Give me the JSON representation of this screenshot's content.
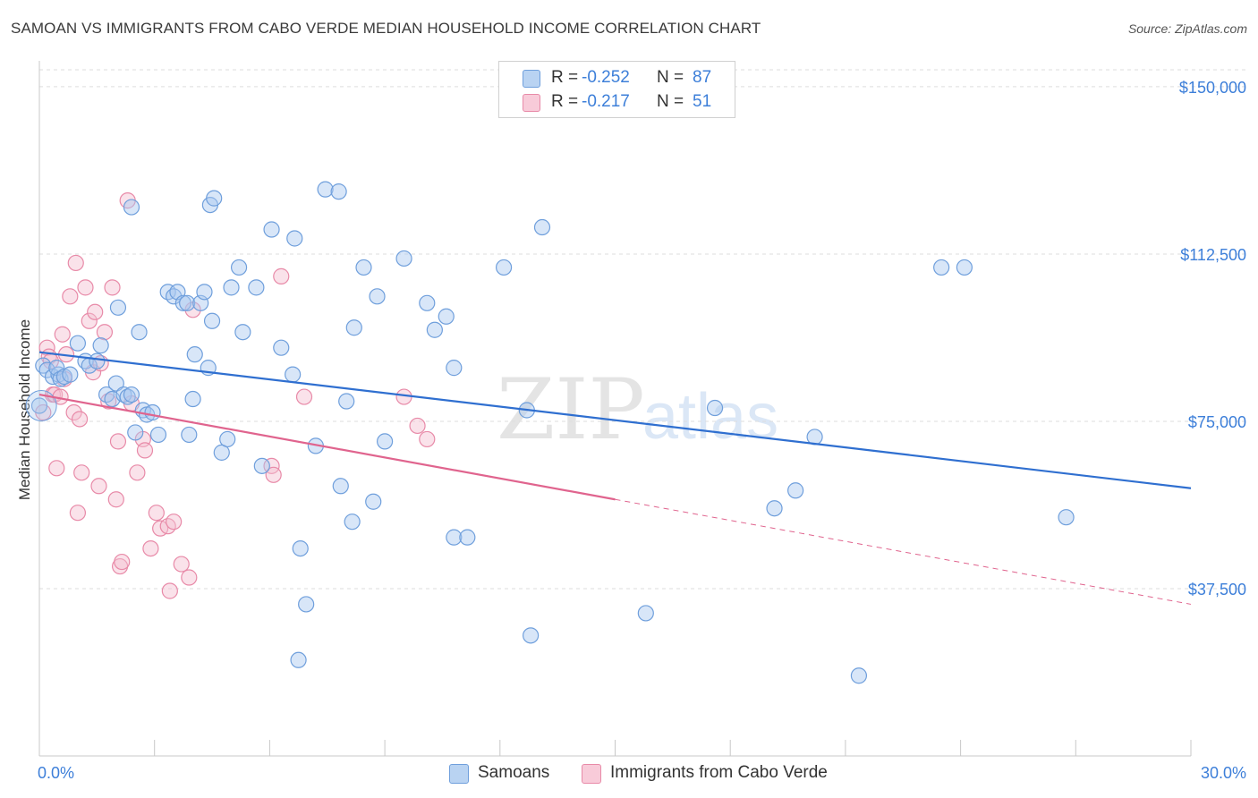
{
  "header": {
    "title": "SAMOAN VS IMMIGRANTS FROM CABO VERDE MEDIAN HOUSEHOLD INCOME CORRELATION CHART",
    "source": "Source: ZipAtlas.com"
  },
  "watermark": {
    "zip": "ZIP",
    "atlas": "atlas"
  },
  "legend": {
    "rows": [
      {
        "r_label": "R =",
        "r_value": "-0.252",
        "n_label": "N =",
        "n_value": "87"
      },
      {
        "r_label": "R =",
        "r_value": "-0.217",
        "n_label": "N =",
        "n_value": "51"
      }
    ]
  },
  "bottom_legend": {
    "samoans": "Samoans",
    "cabo_verde": "Immigrants from Cabo Verde"
  },
  "colors": {
    "blue_fill": "#a9c8ef",
    "blue_stroke": "#6f9fdc",
    "blue_line": "#2f6fd0",
    "pink_fill": "#f5bfd0",
    "pink_stroke": "#e88aa8",
    "pink_line": "#e0648e",
    "tick_label": "#3d7fd9",
    "grid": "#dedede"
  },
  "chart_data": {
    "type": "scatter",
    "title": "SAMOAN VS IMMIGRANTS FROM CABO VERDE MEDIAN HOUSEHOLD INCOME CORRELATION CHART",
    "xlabel": "",
    "ylabel": "Median Household Income",
    "xlim": [
      0,
      30
    ],
    "ylim": [
      0,
      155000
    ],
    "x_tick_labels": [
      {
        "value": 0,
        "label": "0.0%"
      },
      {
        "value": 30,
        "label": "30.0%"
      }
    ],
    "y_ticks": [
      {
        "value": 37500,
        "label": "$37,500"
      },
      {
        "value": 75000,
        "label": "$75,000"
      },
      {
        "value": 112500,
        "label": "$112,500"
      },
      {
        "value": 150000,
        "label": "$150,000"
      }
    ],
    "grid": "horizontal dashed",
    "series": [
      {
        "name": "Samoans",
        "r": -0.252,
        "n": 87,
        "trend": {
          "x": [
            0,
            30
          ],
          "y": [
            90500,
            60000
          ]
        },
        "points": [
          [
            0.0,
            78500
          ],
          [
            0.1,
            87500
          ],
          [
            0.2,
            86500
          ],
          [
            0.35,
            85000
          ],
          [
            0.5,
            85500
          ],
          [
            0.45,
            87000
          ],
          [
            0.55,
            84500
          ],
          [
            0.65,
            85000
          ],
          [
            0.8,
            85500
          ],
          [
            1.0,
            92500
          ],
          [
            1.2,
            88500
          ],
          [
            1.3,
            87500
          ],
          [
            1.5,
            88500
          ],
          [
            1.6,
            92000
          ],
          [
            1.75,
            81000
          ],
          [
            1.9,
            80000
          ],
          [
            2.0,
            83500
          ],
          [
            2.05,
            100500
          ],
          [
            2.2,
            81000
          ],
          [
            2.3,
            80500
          ],
          [
            2.4,
            81000
          ],
          [
            2.5,
            72500
          ],
          [
            2.6,
            95000
          ],
          [
            2.7,
            77500
          ],
          [
            2.8,
            76500
          ],
          [
            2.95,
            77000
          ],
          [
            3.1,
            72000
          ],
          [
            3.35,
            104000
          ],
          [
            3.5,
            103000
          ],
          [
            3.6,
            104000
          ],
          [
            3.75,
            101500
          ],
          [
            3.85,
            101500
          ],
          [
            3.9,
            72000
          ],
          [
            4.0,
            80000
          ],
          [
            4.05,
            90000
          ],
          [
            4.2,
            101500
          ],
          [
            4.3,
            104000
          ],
          [
            4.4,
            87000
          ],
          [
            4.5,
            97500
          ],
          [
            2.4,
            123000
          ],
          [
            4.45,
            123500
          ],
          [
            4.55,
            125000
          ],
          [
            4.75,
            68000
          ],
          [
            4.9,
            71000
          ],
          [
            5.0,
            105000
          ],
          [
            5.2,
            109500
          ],
          [
            5.3,
            95000
          ],
          [
            5.65,
            105000
          ],
          [
            5.8,
            65000
          ],
          [
            6.05,
            118000
          ],
          [
            6.3,
            91500
          ],
          [
            6.6,
            85500
          ],
          [
            6.65,
            116000
          ],
          [
            7.2,
            69500
          ],
          [
            7.45,
            127000
          ],
          [
            7.85,
            60500
          ],
          [
            8.0,
            79500
          ],
          [
            8.2,
            96000
          ],
          [
            8.45,
            109500
          ],
          [
            8.8,
            103000
          ],
          [
            9.0,
            70500
          ],
          [
            9.5,
            111500
          ],
          [
            10.1,
            101500
          ],
          [
            10.3,
            95500
          ],
          [
            10.6,
            98500
          ],
          [
            10.8,
            87000
          ],
          [
            12.1,
            109500
          ],
          [
            13.1,
            118500
          ],
          [
            6.8,
            46500
          ],
          [
            6.95,
            34000
          ],
          [
            6.75,
            21500
          ],
          [
            8.15,
            52500
          ],
          [
            8.7,
            57000
          ],
          [
            10.8,
            49000
          ],
          [
            11.15,
            49000
          ],
          [
            12.8,
            27000
          ],
          [
            15.8,
            32000
          ],
          [
            17.6,
            78000
          ],
          [
            19.15,
            55500
          ],
          [
            19.7,
            59500
          ],
          [
            20.2,
            71500
          ],
          [
            21.35,
            18000
          ],
          [
            23.5,
            109500
          ],
          [
            24.1,
            109500
          ],
          [
            26.75,
            53500
          ],
          [
            7.8,
            126500
          ],
          [
            12.7,
            77500
          ]
        ]
      },
      {
        "name": "Immigrants from Cabo Verde",
        "r": -0.217,
        "n": 51,
        "trend": {
          "x": [
            0,
            15
          ],
          "y": [
            81000,
            57500
          ]
        },
        "trend_dashed": {
          "x": [
            15,
            30
          ],
          "y": [
            57500,
            34000
          ]
        },
        "points": [
          [
            0.1,
            77000
          ],
          [
            0.2,
            91500
          ],
          [
            0.25,
            89500
          ],
          [
            0.3,
            88500
          ],
          [
            0.35,
            81000
          ],
          [
            0.4,
            81000
          ],
          [
            0.45,
            64500
          ],
          [
            0.55,
            80500
          ],
          [
            0.6,
            94500
          ],
          [
            0.65,
            84500
          ],
          [
            0.7,
            90000
          ],
          [
            0.8,
            103000
          ],
          [
            0.9,
            77000
          ],
          [
            0.95,
            110500
          ],
          [
            1.0,
            54500
          ],
          [
            1.05,
            75500
          ],
          [
            1.1,
            63500
          ],
          [
            1.2,
            105000
          ],
          [
            1.3,
            97500
          ],
          [
            1.4,
            86000
          ],
          [
            1.45,
            99500
          ],
          [
            1.55,
            60500
          ],
          [
            1.6,
            88000
          ],
          [
            1.7,
            95000
          ],
          [
            1.8,
            79500
          ],
          [
            1.9,
            105000
          ],
          [
            2.0,
            57500
          ],
          [
            2.05,
            70500
          ],
          [
            2.1,
            42500
          ],
          [
            2.15,
            43500
          ],
          [
            2.3,
            124500
          ],
          [
            2.4,
            79000
          ],
          [
            2.55,
            63500
          ],
          [
            2.7,
            71000
          ],
          [
            2.75,
            68500
          ],
          [
            2.9,
            46500
          ],
          [
            3.05,
            54500
          ],
          [
            3.15,
            51000
          ],
          [
            3.35,
            51500
          ],
          [
            3.4,
            37000
          ],
          [
            3.5,
            52500
          ],
          [
            3.7,
            43000
          ],
          [
            3.9,
            40000
          ],
          [
            4.0,
            100000
          ],
          [
            6.05,
            65000
          ],
          [
            6.1,
            63000
          ],
          [
            6.3,
            107500
          ],
          [
            6.9,
            80500
          ],
          [
            9.5,
            80500
          ],
          [
            9.85,
            74000
          ],
          [
            10.1,
            71000
          ]
        ]
      }
    ]
  }
}
